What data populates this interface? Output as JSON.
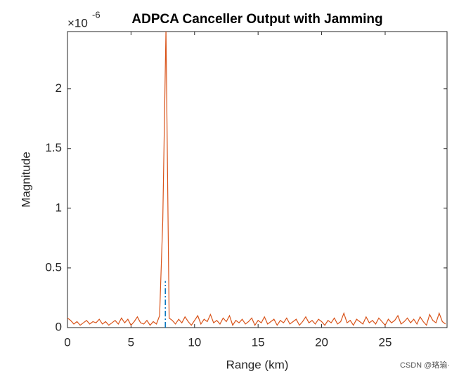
{
  "chart_data": {
    "type": "line",
    "title": "ADPCA Canceller Output with Jamming",
    "x_label": "Range (km)",
    "y_label": "Magnitude",
    "y_multiplier": "×10",
    "y_exponent": "-6",
    "xlim": [
      0,
      29.87
    ],
    "ylim": [
      0,
      2.48
    ],
    "xticks": [
      0,
      5,
      10,
      15,
      20,
      25
    ],
    "yticks": [
      0,
      0.5,
      1,
      1.5,
      2
    ],
    "series": [
      {
        "color": "#d95319",
        "style": "solid",
        "x": [
          0,
          0.25,
          0.5,
          0.75,
          1,
          1.25,
          1.5,
          1.75,
          2,
          2.25,
          2.5,
          2.75,
          3,
          3.25,
          3.5,
          3.75,
          4,
          4.25,
          4.5,
          4.75,
          5,
          5.25,
          5.5,
          5.75,
          6,
          6.25,
          6.5,
          6.75,
          7,
          7.25,
          7.5,
          7.75,
          8,
          8.25,
          8.5,
          8.75,
          9,
          9.25,
          9.5,
          9.75,
          10,
          10.25,
          10.5,
          10.75,
          11,
          11.25,
          11.5,
          11.75,
          12,
          12.25,
          12.5,
          12.75,
          13,
          13.25,
          13.5,
          13.75,
          14,
          14.25,
          14.5,
          14.75,
          15,
          15.25,
          15.5,
          15.75,
          16,
          16.25,
          16.5,
          16.75,
          17,
          17.25,
          17.5,
          17.75,
          18,
          18.25,
          18.5,
          18.75,
          19,
          19.25,
          19.5,
          19.75,
          20,
          20.25,
          20.5,
          20.75,
          21,
          21.25,
          21.5,
          21.75,
          22,
          22.25,
          22.5,
          22.75,
          23,
          23.25,
          23.5,
          23.75,
          24,
          24.25,
          24.5,
          24.75,
          25,
          25.25,
          25.5,
          25.75,
          26,
          26.25,
          26.5,
          26.75,
          27,
          27.25,
          27.5,
          27.75,
          28,
          28.25,
          28.5,
          28.75,
          29,
          29.25,
          29.5,
          29.75
        ],
        "values": [
          0.08,
          0.06,
          0.03,
          0.05,
          0.02,
          0.04,
          0.06,
          0.03,
          0.05,
          0.04,
          0.07,
          0.03,
          0.05,
          0.02,
          0.04,
          0.06,
          0.03,
          0.08,
          0.04,
          0.07,
          0.02,
          0.05,
          0.09,
          0.04,
          0.03,
          0.06,
          0.02,
          0.05,
          0.03,
          0.1,
          0.9,
          2.5,
          0.08,
          0.06,
          0.03,
          0.07,
          0.04,
          0.09,
          0.05,
          0.02,
          0.06,
          0.1,
          0.03,
          0.07,
          0.05,
          0.11,
          0.04,
          0.06,
          0.03,
          0.08,
          0.05,
          0.1,
          0.02,
          0.06,
          0.04,
          0.07,
          0.03,
          0.05,
          0.08,
          0.02,
          0.06,
          0.04,
          0.09,
          0.03,
          0.05,
          0.07,
          0.02,
          0.06,
          0.04,
          0.08,
          0.03,
          0.05,
          0.07,
          0.02,
          0.05,
          0.09,
          0.04,
          0.06,
          0.03,
          0.07,
          0.05,
          0.02,
          0.06,
          0.04,
          0.08,
          0.03,
          0.05,
          0.12,
          0.04,
          0.06,
          0.02,
          0.07,
          0.05,
          0.03,
          0.09,
          0.04,
          0.06,
          0.03,
          0.08,
          0.05,
          0.02,
          0.07,
          0.04,
          0.06,
          0.1,
          0.03,
          0.05,
          0.08,
          0.04,
          0.07,
          0.03,
          0.09,
          0.05,
          0.02,
          0.11,
          0.06,
          0.04,
          0.12,
          0.05,
          0.03
        ]
      },
      {
        "color": "#0072bd",
        "style": "dashdot",
        "x": [
          7.7,
          7.7
        ],
        "values": [
          0,
          0.39
        ]
      }
    ]
  },
  "watermark": "CSDN @珞瑜·"
}
